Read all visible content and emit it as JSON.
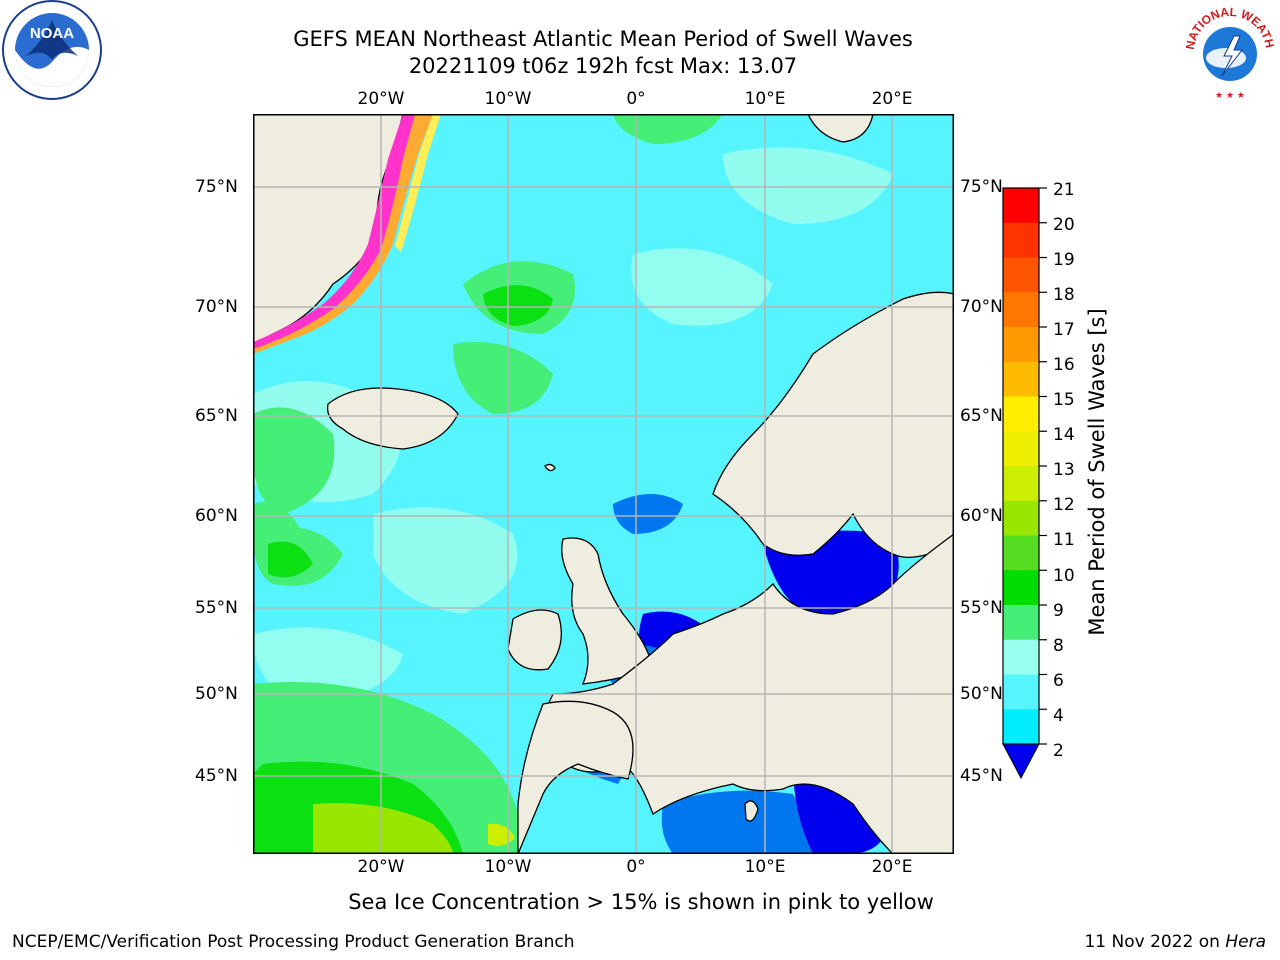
{
  "title": {
    "line1": "GEFS MEAN Northeast Atlantic Mean Period of Swell Waves",
    "line2": "20221109 t06z 192h fcst   Max: 13.07"
  },
  "axes": {
    "longitude_labels": [
      "20°W",
      "10°W",
      "0°",
      "10°E",
      "20°E"
    ],
    "latitude_labels": [
      "75°N",
      "70°N",
      "65°N",
      "60°N",
      "55°N",
      "50°N",
      "45°N"
    ]
  },
  "colorbar": {
    "label": "Mean Period of Swell Waves [s]",
    "ticks": [
      "21",
      "20",
      "19",
      "18",
      "17",
      "16",
      "15",
      "14",
      "13",
      "12",
      "11",
      "10",
      "9",
      "8",
      "6",
      "4",
      "2"
    ],
    "colors": [
      "#ff0000",
      "#ff3300",
      "#ff5500",
      "#ff7700",
      "#ff9900",
      "#ffbb00",
      "#ffee00",
      "#eeee00",
      "#ccee00",
      "#99e600",
      "#55dd22",
      "#00dd00",
      "#44ee77",
      "#99ffee",
      "#55f4ff",
      "#00eeff",
      "#0077ee",
      "#0000ee"
    ],
    "extend": "min"
  },
  "map": {
    "land_color": "#eeede0",
    "ocean_color": "#66f0ff",
    "grid_color": "#b5b5b5",
    "coast_color": "#000000",
    "sea_ice_colors": [
      "#ff33cc",
      "#ffaa33",
      "#ffee55"
    ]
  },
  "note": "Sea Ice Concentration > 15% is shown in pink to yellow",
  "footer": {
    "left": "NCEP/EMC/Verification Post Processing Product Generation Branch",
    "date": "11 Nov 2022 on ",
    "host": "Hera"
  },
  "logos": {
    "noaa": "NOAA",
    "nws": "NATIONAL WEATHER SERVICE"
  }
}
